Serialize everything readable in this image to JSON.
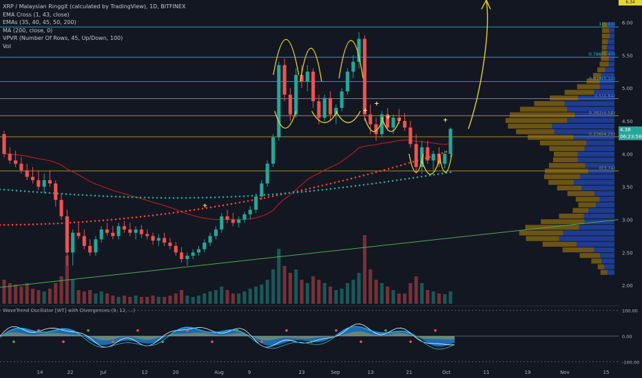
{
  "title": "XRP / Malaysian Ringgit (calculated by TradingView), 1D, BITFINEX",
  "indicators": [
    "EMA Cross (1, 43, close)",
    "EMAs (35, 40, 45, 50, 200)",
    "MA (200, close, 0)",
    "VPVR (Number Of Rows, 45, Up/Down, 100)",
    "Vol"
  ],
  "oscillator_title": "WaveTrend Oscillator [WT] with Divergences (9, 12, ...)",
  "price_badge": {
    "value": "4.38",
    "countdown": "06:23:58",
    "color": "#26a69a"
  },
  "top_badge": "6.34",
  "colors": {
    "background": "#131722",
    "up": "#26a69a",
    "down": "#ef5350",
    "fib": "#26c6da",
    "fib_gold": "#c8a82b",
    "annotation": "#e6d430",
    "ema_red": "#f44336",
    "ema_teal": "#26a69a",
    "trend": "#4caf50",
    "vpvr_up": "#2962ff",
    "vpvr_down": "#b8860b"
  },
  "chart_data": [
    {
      "type": "candlestick",
      "title": "XRP / Malaysian Ringgit (calculated by TradingView), 1D, BITFINEX",
      "x_tick_labels": [
        "14",
        "22",
        "Jul",
        "12",
        "20",
        "Aug",
        "9",
        "23",
        "Sep",
        "13",
        "21",
        "Oct",
        "11",
        "19",
        "Nov",
        "15"
      ],
      "y_ticks": [
        2.0,
        2.5,
        3.0,
        3.5,
        4.0,
        4.5,
        5.0,
        5.5,
        6.0
      ],
      "y_tick_labels": [
        "2.00",
        "2.50",
        "3.00",
        "3.50",
        "4.00",
        "4.50",
        "5.00",
        "5.50",
        "6.00"
      ],
      "ylim": [
        1.72,
        6.34
      ],
      "fib_levels": [
        {
          "label": "1(5.93)",
          "value": 5.93,
          "color": "#26c6da"
        },
        {
          "label": "0.786(5.47)",
          "value": 5.47,
          "color": "#26c6da"
        },
        {
          "label": "0.618(5.10)",
          "value": 5.1,
          "color": "#26c6da"
        },
        {
          "label": "0.5(4.84)",
          "value": 4.84,
          "color": "#9598a1"
        },
        {
          "label": "0.382(4.58)",
          "value": 4.58,
          "color": "#c8a82b"
        },
        {
          "label": "0.236(4.26)",
          "value": 4.26,
          "color": "#c8a82b"
        },
        {
          "label": "0(3.74)",
          "value": 3.74,
          "color": "#c8a82b"
        }
      ],
      "candles": [
        [
          4.3,
          4.35,
          3.95,
          4.0
        ],
        [
          4.0,
          4.1,
          3.85,
          3.9
        ],
        [
          3.9,
          4.05,
          3.8,
          3.85
        ],
        [
          3.85,
          3.95,
          3.7,
          3.75
        ],
        [
          3.75,
          3.85,
          3.6,
          3.65
        ],
        [
          3.65,
          3.8,
          3.55,
          3.6
        ],
        [
          3.6,
          3.75,
          3.45,
          3.5
        ],
        [
          3.5,
          3.7,
          3.4,
          3.6
        ],
        [
          3.6,
          3.75,
          3.5,
          3.55
        ],
        [
          3.55,
          3.6,
          3.2,
          3.3
        ],
        [
          3.3,
          3.4,
          3.0,
          3.05
        ],
        [
          3.05,
          3.15,
          2.3,
          2.5
        ],
        [
          2.5,
          2.85,
          2.3,
          2.8
        ],
        [
          2.8,
          2.95,
          2.7,
          2.75
        ],
        [
          2.75,
          2.85,
          2.55,
          2.6
        ],
        [
          2.6,
          2.7,
          2.45,
          2.5
        ],
        [
          2.5,
          2.75,
          2.45,
          2.7
        ],
        [
          2.7,
          2.9,
          2.65,
          2.85
        ],
        [
          2.85,
          2.95,
          2.75,
          2.8
        ],
        [
          2.8,
          2.9,
          2.7,
          2.75
        ],
        [
          2.75,
          2.95,
          2.7,
          2.9
        ],
        [
          2.9,
          2.98,
          2.8,
          2.85
        ],
        [
          2.85,
          2.95,
          2.75,
          2.8
        ],
        [
          2.8,
          2.9,
          2.7,
          2.85
        ],
        [
          2.85,
          2.92,
          2.72,
          2.78
        ],
        [
          2.78,
          2.85,
          2.7,
          2.75
        ],
        [
          2.75,
          2.8,
          2.62,
          2.68
        ],
        [
          2.68,
          2.78,
          2.6,
          2.72
        ],
        [
          2.72,
          2.8,
          2.6,
          2.65
        ],
        [
          2.65,
          2.72,
          2.55,
          2.6
        ],
        [
          2.6,
          2.66,
          2.45,
          2.5
        ],
        [
          2.5,
          2.58,
          2.35,
          2.4
        ],
        [
          2.4,
          2.5,
          2.3,
          2.45
        ],
        [
          2.45,
          2.55,
          2.4,
          2.5
        ],
        [
          2.5,
          2.6,
          2.45,
          2.55
        ],
        [
          2.55,
          2.7,
          2.5,
          2.65
        ],
        [
          2.65,
          2.8,
          2.6,
          2.75
        ],
        [
          2.75,
          2.9,
          2.7,
          2.85
        ],
        [
          2.85,
          3.1,
          2.8,
          3.05
        ],
        [
          3.05,
          3.15,
          2.95,
          3.0
        ],
        [
          3.0,
          3.1,
          2.9,
          2.95
        ],
        [
          2.95,
          3.05,
          2.88,
          3.0
        ],
        [
          3.0,
          3.12,
          2.95,
          3.08
        ],
        [
          3.08,
          3.2,
          3.0,
          3.15
        ],
        [
          3.15,
          3.4,
          3.1,
          3.35
        ],
        [
          3.35,
          3.6,
          3.3,
          3.55
        ],
        [
          3.55,
          3.9,
          3.5,
          3.85
        ],
        [
          3.85,
          4.3,
          3.8,
          4.25
        ],
        [
          4.25,
          5.4,
          4.2,
          5.35
        ],
        [
          5.35,
          5.45,
          4.8,
          4.9
        ],
        [
          4.9,
          5.0,
          4.5,
          4.6
        ],
        [
          4.6,
          5.3,
          4.55,
          5.2
        ],
        [
          5.2,
          5.35,
          5.0,
          5.1
        ],
        [
          5.1,
          5.35,
          4.95,
          5.25
        ],
        [
          5.25,
          5.3,
          4.7,
          4.8
        ],
        [
          4.8,
          4.9,
          4.45,
          4.55
        ],
        [
          4.55,
          4.9,
          4.5,
          4.85
        ],
        [
          4.85,
          4.95,
          4.5,
          4.6
        ],
        [
          4.6,
          4.75,
          4.45,
          4.7
        ],
        [
          4.7,
          5.0,
          4.65,
          4.95
        ],
        [
          4.95,
          5.3,
          4.9,
          5.25
        ],
        [
          5.25,
          5.5,
          5.15,
          5.4
        ],
        [
          5.4,
          5.85,
          5.3,
          5.75
        ],
        [
          5.75,
          5.8,
          4.5,
          4.6
        ],
        [
          4.6,
          4.75,
          4.3,
          4.45
        ],
        [
          4.45,
          4.55,
          4.2,
          4.3
        ],
        [
          4.3,
          4.65,
          4.25,
          4.6
        ],
        [
          4.6,
          4.7,
          4.35,
          4.4
        ],
        [
          4.4,
          4.6,
          4.3,
          4.55
        ],
        [
          4.55,
          4.68,
          4.45,
          4.5
        ],
        [
          4.5,
          4.62,
          4.35,
          4.4
        ],
        [
          4.4,
          4.5,
          4.1,
          4.15
        ],
        [
          4.15,
          4.3,
          3.7,
          3.8
        ],
        [
          3.8,
          4.2,
          3.7,
          4.1
        ],
        [
          4.1,
          4.2,
          3.85,
          3.9
        ],
        [
          3.9,
          4.05,
          3.75,
          4.0
        ],
        [
          4.0,
          4.1,
          3.8,
          3.85
        ],
        [
          3.85,
          4.05,
          3.78,
          4.0
        ],
        [
          4.0,
          4.4,
          3.95,
          4.38
        ]
      ],
      "volume": [
        0.35,
        0.3,
        0.28,
        0.25,
        0.3,
        0.22,
        0.2,
        0.18,
        0.22,
        0.3,
        0.4,
        0.7,
        0.35,
        0.2,
        0.18,
        0.2,
        0.15,
        0.18,
        0.15,
        0.12,
        0.1,
        0.12,
        0.1,
        0.12,
        0.1,
        0.1,
        0.12,
        0.1,
        0.1,
        0.12,
        0.15,
        0.2,
        0.12,
        0.1,
        0.12,
        0.15,
        0.18,
        0.2,
        0.25,
        0.2,
        0.15,
        0.15,
        0.18,
        0.22,
        0.25,
        0.28,
        0.35,
        0.5,
        0.8,
        0.55,
        0.45,
        0.5,
        0.35,
        0.3,
        0.4,
        0.35,
        0.3,
        0.25,
        0.2,
        0.22,
        0.3,
        0.35,
        0.45,
        1.0,
        0.5,
        0.35,
        0.3,
        0.25,
        0.2,
        0.15,
        0.15,
        0.3,
        0.4,
        0.3,
        0.2,
        0.18,
        0.15,
        0.14,
        0.18
      ],
      "ema_cross_start": 2.92,
      "ema_200_start": 3.46,
      "trendline": {
        "from": 1.97,
        "to": 3.0
      }
    },
    {
      "type": "area",
      "title": "WaveTrend Oscillator [WT] with Divergences",
      "y_ticks": [
        100,
        0,
        -100
      ],
      "y_tick_labels": [
        "100.00",
        "0.00",
        "-100.00"
      ],
      "ylim": [
        -110,
        110
      ]
    }
  ]
}
